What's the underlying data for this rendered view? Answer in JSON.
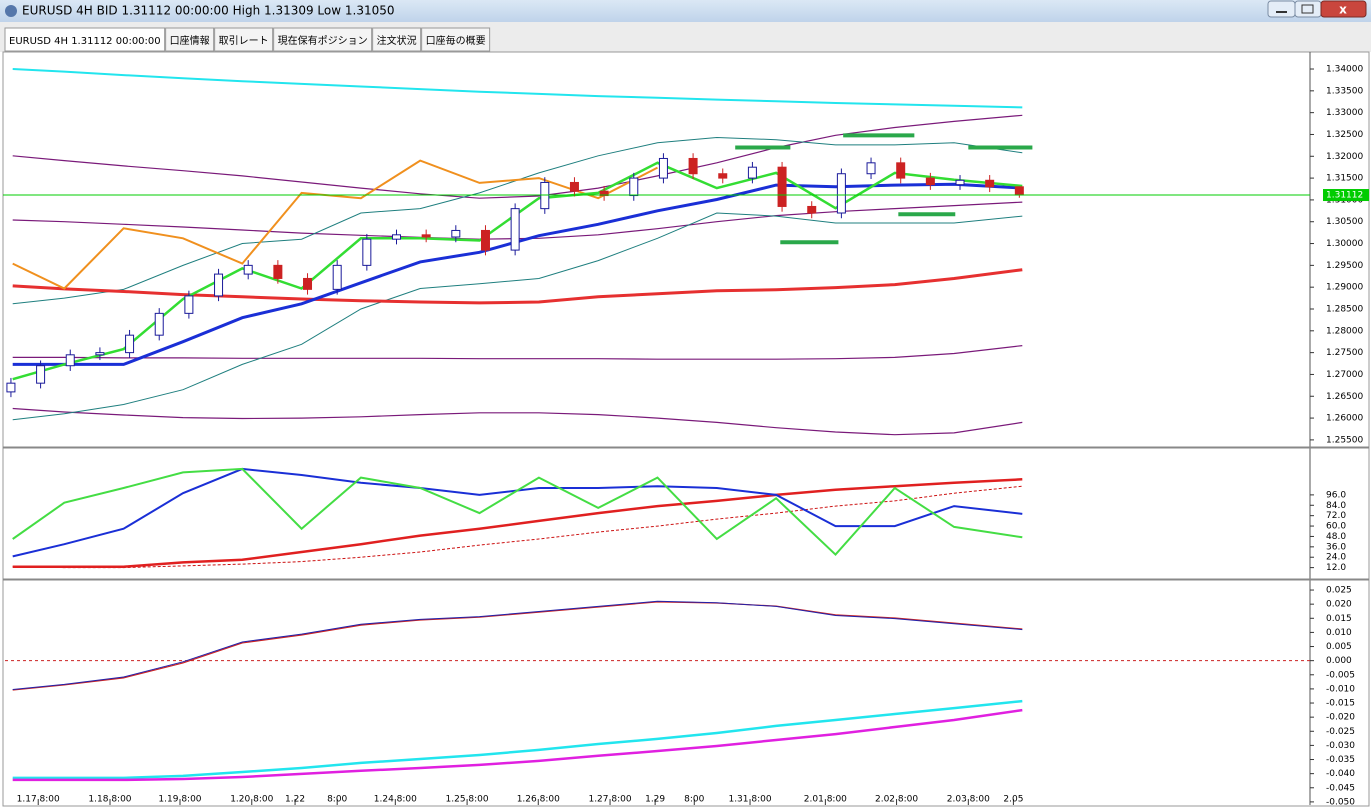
{
  "window": {
    "title": "EURUSD 4H BID 1.31112 00:00:00 High 1.31309 Low 1.31050"
  },
  "tabs": [
    "EURUSD 4H 1.31112 00:00:00",
    "口座情報",
    "取引レート",
    "現在保有ポジション",
    "注文状況",
    "口座毎の概要"
  ],
  "chart_data": [
    {
      "type": "candlestick",
      "xlim": [
        0,
        220
      ],
      "ylim": [
        1.2536,
        1.3439
      ],
      "yticks": [
        {
          "value": 1.34,
          "label": "1.34000"
        },
        {
          "value": 1.335,
          "label": "1.33500"
        },
        {
          "value": 1.33,
          "label": "1.33000"
        },
        {
          "value": 1.325,
          "label": "1.32500"
        },
        {
          "value": 1.32,
          "label": "1.32000"
        },
        {
          "value": 1.315,
          "label": "1.31500"
        },
        {
          "value": 1.31,
          "label": "1.31000"
        },
        {
          "value": 1.305,
          "label": "1.30500"
        },
        {
          "value": 1.3,
          "label": "1.30000"
        },
        {
          "value": 1.295,
          "label": "1.29500"
        },
        {
          "value": 1.29,
          "label": "1.29000"
        },
        {
          "value": 1.285,
          "label": "1.28500"
        },
        {
          "value": 1.28,
          "label": "1.28000"
        },
        {
          "value": 1.275,
          "label": "1.27500"
        },
        {
          "value": 1.27,
          "label": "1.27000"
        },
        {
          "value": 1.265,
          "label": "1.26500"
        },
        {
          "value": 1.26,
          "label": "1.26000"
        },
        {
          "value": 1.255,
          "label": "1.25500"
        }
      ],
      "current_price": 1.31112,
      "current_price_color": "#00cc00",
      "candles": {
        "up_color": "#1a1a9a",
        "down_color": "#cc2222",
        "x": [
          1,
          6,
          11,
          16,
          21,
          26,
          31,
          36,
          41,
          46,
          51,
          56,
          61,
          66,
          71,
          76,
          81,
          86,
          91,
          96,
          101,
          106,
          111,
          116,
          121,
          126,
          131,
          136,
          141,
          146,
          151,
          156,
          161,
          166,
          171
        ],
        "open": [
          1.266,
          1.268,
          1.272,
          1.2745,
          1.275,
          1.279,
          1.284,
          1.288,
          1.293,
          1.295,
          1.292,
          1.2895,
          1.295,
          1.301,
          1.302,
          1.3015,
          1.303,
          1.2985,
          1.308,
          1.314,
          1.312,
          1.311,
          1.315,
          1.3195,
          1.316,
          1.315,
          1.3175,
          1.3085,
          1.307,
          1.316,
          1.3185,
          1.315,
          1.3135,
          1.3145,
          1.313
        ],
        "high": [
          1.2692,
          1.2732,
          1.2757,
          1.2762,
          1.2802,
          1.2852,
          1.2892,
          1.2942,
          1.2962,
          1.2962,
          1.2932,
          1.2962,
          1.3022,
          1.3032,
          1.3032,
          1.3042,
          1.3042,
          1.3092,
          1.3152,
          1.3152,
          1.3132,
          1.3162,
          1.3207,
          1.3207,
          1.3172,
          1.3187,
          1.3187,
          1.3097,
          1.3172,
          1.3197,
          1.3197,
          1.3162,
          1.3157,
          1.3157,
          1.31309
        ],
        "low": [
          1.2648,
          1.2668,
          1.2708,
          1.2733,
          1.2738,
          1.2778,
          1.2828,
          1.2868,
          1.2918,
          1.2908,
          1.2883,
          1.2883,
          1.2938,
          1.2998,
          1.3003,
          1.3003,
          1.2973,
          1.2973,
          1.3068,
          1.3108,
          1.3098,
          1.3098,
          1.3138,
          1.3148,
          1.3138,
          1.3138,
          1.3073,
          1.3058,
          1.3058,
          1.3148,
          1.3138,
          1.3123,
          1.3123,
          1.3118,
          1.3105
        ],
        "close": [
          1.268,
          1.272,
          1.2745,
          1.275,
          1.279,
          1.284,
          1.288,
          1.293,
          1.295,
          1.292,
          1.2895,
          1.295,
          1.301,
          1.302,
          1.3015,
          1.303,
          1.2985,
          1.308,
          1.314,
          1.312,
          1.311,
          1.315,
          1.3195,
          1.316,
          1.315,
          1.3175,
          1.3085,
          1.307,
          1.316,
          1.3185,
          1.315,
          1.3135,
          1.3145,
          1.313,
          1.31112
        ]
      },
      "x": [
        1.3,
        10,
        20,
        30,
        40,
        50,
        60,
        70,
        80,
        90,
        100,
        110,
        120,
        130,
        140,
        150,
        160,
        171.5
      ],
      "series": [
        {
          "color": "#22e5ee",
          "width": 2,
          "values": [
            1.34,
            1.3394,
            1.3386,
            1.3379,
            1.3372,
            1.3366,
            1.336,
            1.3354,
            1.3348,
            1.3343,
            1.3338,
            1.3334,
            1.333,
            1.3326,
            1.3322,
            1.3319,
            1.3316,
            1.3312
          ]
        },
        {
          "color": "#7a1a7a",
          "width": 1.2,
          "values": [
            1.3201,
            1.319,
            1.3178,
            1.3167,
            1.3155,
            1.3141,
            1.3127,
            1.3114,
            1.3104,
            1.3109,
            1.3127,
            1.3155,
            1.3185,
            1.322,
            1.3248,
            1.3266,
            1.328,
            1.3294
          ]
        },
        {
          "color": "#7a1a7a",
          "width": 1.2,
          "values": [
            1.3054,
            1.305,
            1.3044,
            1.3038,
            1.3031,
            1.3024,
            1.3019,
            1.3014,
            1.301,
            1.3012,
            1.302,
            1.3034,
            1.305,
            1.3064,
            1.3073,
            1.308,
            1.3087,
            1.3095
          ]
        },
        {
          "color": "#7a1a7a",
          "width": 1.2,
          "values": [
            1.2739,
            1.2739,
            1.2738,
            1.2738,
            1.2737,
            1.2737,
            1.2737,
            1.2737,
            1.2736,
            1.2736,
            1.2736,
            1.2735,
            1.2735,
            1.2735,
            1.2736,
            1.2739,
            1.2748,
            1.2766
          ]
        },
        {
          "color": "#7a1a7a",
          "width": 1.2,
          "values": [
            1.2622,
            1.2614,
            1.2607,
            1.2601,
            1.2599,
            1.26,
            1.2603,
            1.2608,
            1.2612,
            1.2612,
            1.2608,
            1.26,
            1.259,
            1.2578,
            1.2568,
            1.2562,
            1.2566,
            1.259
          ]
        },
        {
          "color": "#1f7f7f",
          "width": 1,
          "values": [
            1.2862,
            1.2875,
            1.2895,
            1.295,
            1.3,
            1.301,
            1.307,
            1.308,
            1.3116,
            1.3162,
            1.3201,
            1.3231,
            1.3243,
            1.3238,
            1.3226,
            1.3226,
            1.3231,
            1.3208
          ]
        },
        {
          "color": "#1f7f7f",
          "width": 1,
          "values": [
            1.2596,
            1.261,
            1.2631,
            1.2665,
            1.2723,
            1.2769,
            1.285,
            1.2897,
            1.2908,
            1.292,
            1.2961,
            1.3012,
            1.307,
            1.3063,
            1.3047,
            1.3047,
            1.3047,
            1.3063
          ]
        },
        {
          "color": "#e63030",
          "width": 3,
          "values": [
            1.2903,
            1.2896,
            1.289,
            1.2883,
            1.2878,
            1.2873,
            1.2869,
            1.2866,
            1.2864,
            1.2866,
            1.2878,
            1.2885,
            1.2892,
            1.2894,
            1.2899,
            1.2906,
            1.292,
            1.294
          ]
        },
        {
          "color": "#1a2fd6",
          "width": 3,
          "values": [
            1.2723,
            1.2723,
            1.2723,
            1.2775,
            1.283,
            1.2862,
            1.291,
            1.2958,
            1.298,
            1.3018,
            1.3044,
            1.3075,
            1.3101,
            1.3134,
            1.313,
            1.3134,
            1.3136,
            1.3127
          ]
        },
        {
          "color": "#f0901e",
          "width": 2,
          "values": [
            1.2954,
            1.2897,
            1.3035,
            1.3012,
            1.2954,
            1.3116,
            1.3104,
            1.319,
            1.3139,
            1.315,
            1.3104,
            1.3174,
            null,
            null,
            null,
            null,
            null,
            null
          ]
        },
        {
          "color": "#33dd33",
          "width": 2.5,
          "values": [
            1.2689,
            1.2723,
            1.2758,
            1.2873,
            1.2943,
            1.2897,
            1.3012,
            1.3012,
            1.3007,
            1.3104,
            1.3116,
            1.3185,
            1.3127,
            1.3162,
            1.3081,
            1.3162,
            1.3146,
            1.3132
          ]
        }
      ],
      "levels": {
        "color": "#2aa84a",
        "items": [
          {
            "x": [
              123.1,
              132.4
            ],
            "value": 1.322
          },
          {
            "x": [
              141.3,
              153.3
            ],
            "value": 1.3248
          },
          {
            "x": [
              162.4,
              173.2
            ],
            "value": 1.322
          },
          {
            "x": [
              130.7,
              140.5
            ],
            "value": 1.3003
          },
          {
            "x": [
              150.6,
              160.2
            ],
            "value": 1.3067
          }
        ]
      }
    },
    {
      "type": "line",
      "xlim": [
        0,
        220
      ],
      "ylim": [
        0,
        149
      ],
      "yticks": [
        {
          "value": 96,
          "label": "96.0"
        },
        {
          "value": 84,
          "label": "84.0"
        },
        {
          "value": 72,
          "label": "72.0"
        },
        {
          "value": 60,
          "label": "60.0"
        },
        {
          "value": 48,
          "label": "48.0"
        },
        {
          "value": 36,
          "label": "36.0"
        },
        {
          "value": 24,
          "label": "24.0"
        },
        {
          "value": 12,
          "label": "12.0"
        }
      ],
      "x": [
        1.3,
        10,
        20,
        30,
        40,
        50,
        60,
        70,
        80,
        90,
        100,
        110,
        120,
        130,
        140,
        150,
        160,
        171.5
      ],
      "series": [
        {
          "color": "#cc1111",
          "width": 1,
          "dashed": true,
          "values": [
            13,
            12,
            12,
            14,
            16,
            19,
            24,
            30,
            38,
            45,
            53,
            60,
            68,
            75,
            83,
            89,
            98,
            106
          ]
        },
        {
          "color": "#e02020",
          "width": 2.5,
          "values": [
            13,
            13,
            13,
            18,
            21,
            30,
            39,
            49,
            57,
            66,
            75,
            83,
            89,
            96,
            102,
            106,
            110,
            114
          ]
        },
        {
          "color": "#1a2fd6",
          "width": 2,
          "values": [
            25,
            39,
            57,
            98,
            126,
            119,
            110,
            104,
            96,
            104,
            104,
            106,
            104,
            96,
            60,
            60,
            83,
            74
          ]
        },
        {
          "color": "#44dd44",
          "width": 2,
          "values": [
            45,
            87,
            104,
            122,
            126,
            57,
            116,
            104,
            75,
            116,
            81,
            116,
            45,
            92,
            27,
            104,
            59,
            47
          ]
        }
      ]
    },
    {
      "type": "line",
      "xlim": [
        0,
        220
      ],
      "ylim": [
        -0.0511,
        0.0282
      ],
      "yticks": [
        0.025,
        {
          "value": 0.02,
          "label": "0.020"
        },
        0.015,
        {
          "value": 0.01,
          "label": "0.010"
        },
        0.005,
        {
          "value": 0,
          "label": "0.000"
        },
        -0.005,
        {
          "value": -0.01,
          "label": "-0.010"
        },
        -0.015,
        {
          "value": -0.02,
          "label": "-0.020"
        },
        -0.025,
        {
          "value": -0.03,
          "label": "-0.030"
        },
        -0.035,
        {
          "value": -0.04,
          "label": "-0.040"
        },
        -0.045,
        {
          "value": -0.05,
          "label": "-0.050"
        }
      ],
      "hlines": [
        {
          "value": 0,
          "color": "#cc2222"
        }
      ],
      "x": [
        1.3,
        10,
        20,
        30,
        40,
        50,
        60,
        70,
        80,
        90,
        100,
        110,
        120,
        130,
        140,
        150,
        160,
        171.5
      ],
      "xticks": [
        {
          "value": 5.6,
          "label": "1.17 8:00"
        },
        {
          "value": 17.7,
          "label": "1.18 8:00"
        },
        {
          "value": 29.5,
          "label": "1.19 8:00"
        },
        {
          "value": 41.6,
          "label": "1.20 8:00"
        },
        {
          "value": 48.9,
          "label": "1.22"
        },
        {
          "value": 56,
          "label": "8:00"
        },
        {
          "value": 65.8,
          "label": "1.24 8:00"
        },
        {
          "value": 77.9,
          "label": "1.25 8:00"
        },
        {
          "value": 89.9,
          "label": "1.26 8:00"
        },
        {
          "value": 102,
          "label": "1.27 8:00"
        },
        {
          "value": 109.6,
          "label": "1.29"
        },
        {
          "value": 116.2,
          "label": "8:00"
        },
        {
          "value": 125.6,
          "label": "1.31 8:00"
        },
        {
          "value": 138.3,
          "label": "2.01 8:00"
        },
        {
          "value": 150.3,
          "label": "2.02 8:00"
        },
        {
          "value": 162.4,
          "label": "2.03 8:00"
        },
        {
          "value": 170,
          "label": "2.05"
        }
      ],
      "series": [
        {
          "color": "#cc2222",
          "width": 1.2,
          "values": [
            -0.0104,
            -0.0086,
            -0.0061,
            -0.0008,
            0.0063,
            0.0091,
            0.0126,
            0.0144,
            0.0154,
            0.0172,
            0.019,
            0.0208,
            0.0204,
            0.0193,
            0.0162,
            0.0151,
            0.0133,
            0.0112
          ]
        },
        {
          "color": "#2222aa",
          "width": 1,
          "values": [
            -0.0102,
            -0.0084,
            -0.0058,
            -0.0004,
            0.0066,
            0.0094,
            0.0129,
            0.0146,
            0.0156,
            0.0174,
            0.0192,
            0.021,
            0.0205,
            0.0192,
            0.016,
            0.0149,
            0.0131,
            0.011
          ]
        },
        {
          "color": "#22e5ee",
          "width": 2.5,
          "values": [
            -0.0415,
            -0.0415,
            -0.0415,
            -0.0408,
            -0.0394,
            -0.038,
            -0.0362,
            -0.0348,
            -0.0334,
            -0.0316,
            -0.0295,
            -0.0277,
            -0.0256,
            -0.0231,
            -0.021,
            -0.0189,
            -0.0168,
            -0.0143
          ]
        },
        {
          "color": "#e020e0",
          "width": 2.5,
          "values": [
            -0.0422,
            -0.0422,
            -0.0422,
            -0.0419,
            -0.0412,
            -0.0401,
            -0.039,
            -0.038,
            -0.0369,
            -0.0355,
            -0.0337,
            -0.032,
            -0.0302,
            -0.0281,
            -0.026,
            -0.0235,
            -0.021,
            -0.0175
          ]
        }
      ]
    }
  ]
}
